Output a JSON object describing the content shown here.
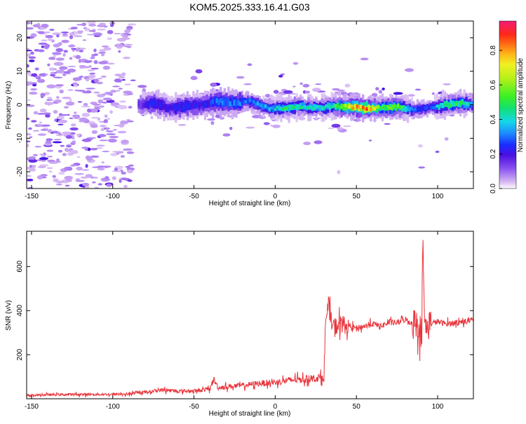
{
  "title": "KOM5.2025.333.16.41.G03",
  "chart_data": [
    {
      "type": "heatmap",
      "xlabel": "Height of straight line (km)",
      "ylabel": "Frequency (Hz)",
      "xlim": [
        -153,
        122
      ],
      "ylim": [
        -25,
        25
      ],
      "xticks": [
        -150,
        -100,
        -50,
        0,
        50,
        100
      ],
      "yticks": [
        -20,
        -10,
        0,
        10,
        20
      ],
      "grid": false,
      "colorbar": {
        "label": "Normalized spectral amplitude",
        "range": [
          0,
          0.97
        ],
        "ticks": [
          0.0,
          0.2,
          0.4,
          0.6,
          0.8
        ]
      },
      "ridge": {
        "x": [
          -84,
          -75,
          -65,
          -55,
          -45,
          -35,
          -25,
          -15,
          -5,
          5,
          15,
          25,
          35,
          45,
          55,
          65,
          75,
          85,
          95,
          105,
          115,
          122
        ],
        "freq": [
          0,
          0.5,
          -1,
          -0.5,
          0,
          1,
          0.5,
          1,
          -1,
          -1,
          -0.5,
          -1,
          -0.5,
          -0.5,
          -1,
          -1,
          -0.5,
          -1.5,
          -1,
          0,
          0.5,
          0
        ],
        "amplitude": [
          0.15,
          0.25,
          0.2,
          0.25,
          0.2,
          0.3,
          0.3,
          0.3,
          0.35,
          0.45,
          0.45,
          0.4,
          0.45,
          0.7,
          0.85,
          0.55,
          0.6,
          0.3,
          0.25,
          0.5,
          0.5,
          0.3
        ]
      }
    },
    {
      "type": "line",
      "xlabel": "Height of straight line (km)",
      "ylabel": "SNR (v/v)",
      "xlim": [
        -153,
        122
      ],
      "ylim": [
        0,
        760
      ],
      "xticks": [
        -150,
        -100,
        -50,
        0,
        50,
        100
      ],
      "yticks": [
        200,
        400,
        600
      ],
      "grid": false,
      "series": [
        {
          "color": "#e8333a",
          "x": [
            -153,
            -140,
            -120,
            -100,
            -90,
            -80,
            -70,
            -60,
            -50,
            -45,
            -40,
            -38,
            -35,
            -30,
            -20,
            -10,
            0,
            10,
            20,
            28,
            30,
            31,
            33,
            35,
            38,
            40,
            45,
            50,
            55,
            60,
            65,
            70,
            75,
            80,
            85,
            88,
            90,
            91,
            92,
            95,
            100,
            105,
            110,
            115,
            122
          ],
          "y": [
            15,
            18,
            20,
            20,
            22,
            30,
            40,
            35,
            35,
            40,
            45,
            90,
            50,
            55,
            60,
            70,
            75,
            85,
            90,
            95,
            100,
            350,
            420,
            330,
            330,
            340,
            330,
            320,
            330,
            340,
            330,
            345,
            345,
            360,
            340,
            350,
            300,
            700,
            320,
            340,
            350,
            340,
            345,
            350,
            355
          ]
        }
      ]
    }
  ]
}
